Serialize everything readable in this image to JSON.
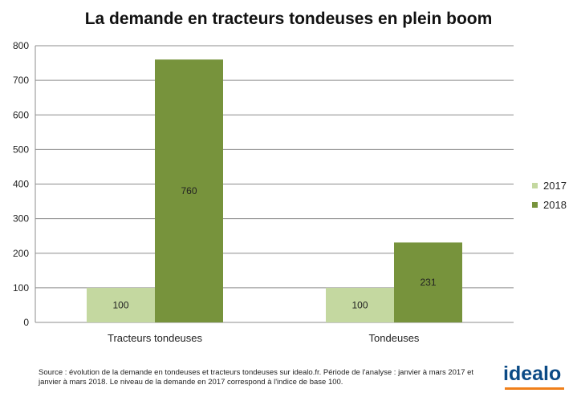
{
  "chart_data": {
    "type": "bar",
    "title": "La demande en tracteurs tondeuses en plein boom",
    "xlabel": "",
    "ylabel": "",
    "categories": [
      "Tracteurs tondeuses",
      "Tondeuses"
    ],
    "series": [
      {
        "name": "2017",
        "values": [
          100,
          100
        ],
        "color": "#c4d8a0"
      },
      {
        "name": "2018",
        "values": [
          760,
          231
        ],
        "color": "#77933c"
      }
    ],
    "ylim": [
      0,
      800
    ],
    "yticks": [
      0,
      100,
      200,
      300,
      400,
      500,
      600,
      700,
      800
    ],
    "grid": true,
    "legend_position": "right",
    "data_labels": true
  },
  "footer": {
    "source": "Source : évolution de la demande en tondeuses et tracteurs tondeuses sur idealo.fr. Période de l'analyse : janvier à mars 2017 et janvier à mars 2018. Le niveau de la demande en 2017 correspond à l'indice de base 100.",
    "logo_text": "idealo",
    "logo_accent_color": "#f07f1a"
  }
}
